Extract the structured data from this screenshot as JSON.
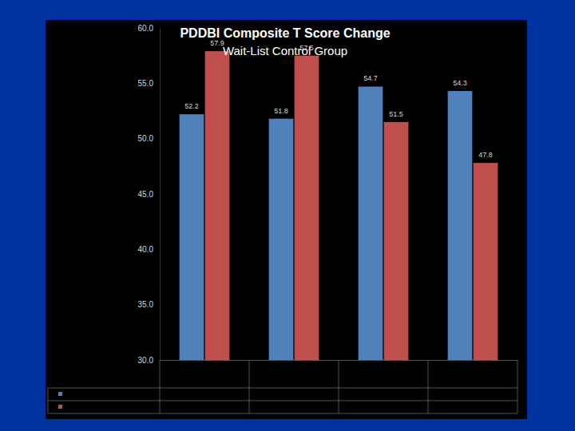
{
  "chart_data": {
    "type": "bar",
    "title": "PDDBI Composite T Score Change",
    "subtitle": "Wait-List Control Group",
    "categories": [
      null,
      null,
      null,
      null
    ],
    "series": [
      {
        "color": "#4f81bd",
        "values": [
          52.2,
          51.8,
          54.7,
          54.3
        ]
      },
      {
        "color": "#c0504d",
        "values": [
          57.9,
          57.5,
          51.5,
          47.8
        ]
      }
    ],
    "ylim": [
      30,
      60
    ],
    "yticks": [
      {
        "value": 30,
        "label": "30.0"
      },
      {
        "value": 35,
        "label": "35.0"
      },
      {
        "value": 40,
        "label": "40.0"
      },
      {
        "value": 45,
        "label": "45.0"
      },
      {
        "value": 50,
        "label": "50.0"
      },
      {
        "value": 55,
        "label": "55.0"
      },
      {
        "value": 60,
        "label": "60.0"
      }
    ],
    "data_labels": true,
    "grid": false
  }
}
